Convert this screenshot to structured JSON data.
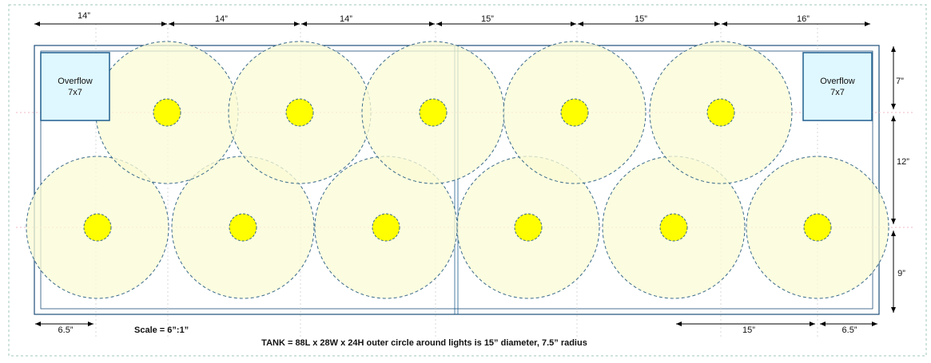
{
  "colors": {
    "tank_outline": "#1f4f7a",
    "overflow_fill": "#dff8ff",
    "overflow_border": "#1f5f8f",
    "light_circle_fill": "#fbfbd6",
    "light_circle_stroke": "#3a6b8a",
    "bulb_fill": "#ffff00",
    "grid_line": "#d9d9d9",
    "dimension_line": "#000000"
  },
  "top_dimensions": [
    "14”",
    "14”",
    "14”",
    "15”",
    "15”",
    "16”"
  ],
  "right_dimensions": [
    "7”",
    "12”",
    "9”"
  ],
  "bottom_dimensions": {
    "left": "6.5”",
    "right_a": "15”",
    "right_b": "6.5”"
  },
  "overflows": {
    "left": {
      "title": "Overflow",
      "size": "7x7"
    },
    "right": {
      "title": "Overflow",
      "size": "7x7"
    }
  },
  "scale_label": "Scale = 6”:1”",
  "caption": "TANK = 88L x 28W x 24H outer circle around lights is 15” diameter, 7.5” radius",
  "lights": {
    "top_row_count": 5,
    "bottom_row_count": 6
  }
}
